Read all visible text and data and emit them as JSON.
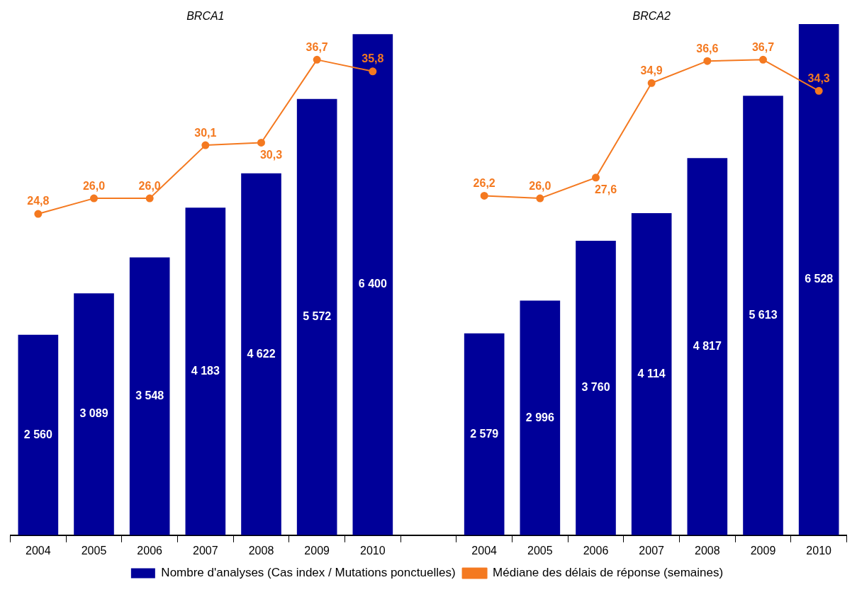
{
  "chart_data": {
    "type": "bar",
    "categories": [
      "2004",
      "2005",
      "2006",
      "2007",
      "2008",
      "2009",
      "2010",
      null,
      "2004",
      "2005",
      "2006",
      "2007",
      "2008",
      "2009",
      "2010"
    ],
    "annotations": [
      "BRCA1",
      "BRCA2"
    ],
    "tick_labels": "x",
    "legend": "bottom",
    "series": [
      {
        "name": "Nombre d'analyses (Cas index / Mutations ponctuelles)",
        "color": "#000099",
        "values": [
          2560,
          3089,
          3548,
          4183,
          4622,
          5572,
          6400,
          null,
          2579,
          2996,
          3760,
          4114,
          4817,
          5613,
          6528
        ],
        "value_labels": [
          "2 560",
          "3 089",
          "3 548",
          "4 183",
          "4 622",
          "5 572",
          "6 400",
          null,
          "2 579",
          "2 996",
          "3 760",
          "4 114",
          "4 817",
          "5 613",
          "6 528"
        ]
      },
      {
        "name": "Médiane des délais de réponse (semaines)",
        "type": "line",
        "axis": "y2",
        "color": "#f47920",
        "marker": "circle",
        "values": [
          24.8,
          26.0,
          26.0,
          30.1,
          30.3,
          36.7,
          35.8,
          null,
          26.2,
          26.0,
          27.6,
          34.9,
          36.6,
          36.7,
          34.3
        ],
        "value_labels": [
          "24,8",
          "26,0",
          "26,0",
          "30,1",
          "30,3",
          "36,7",
          "35,8",
          null,
          "26,2",
          "26,0",
          "27,6",
          "34,9",
          "36,6",
          "36,7",
          "34,3"
        ]
      }
    ]
  }
}
